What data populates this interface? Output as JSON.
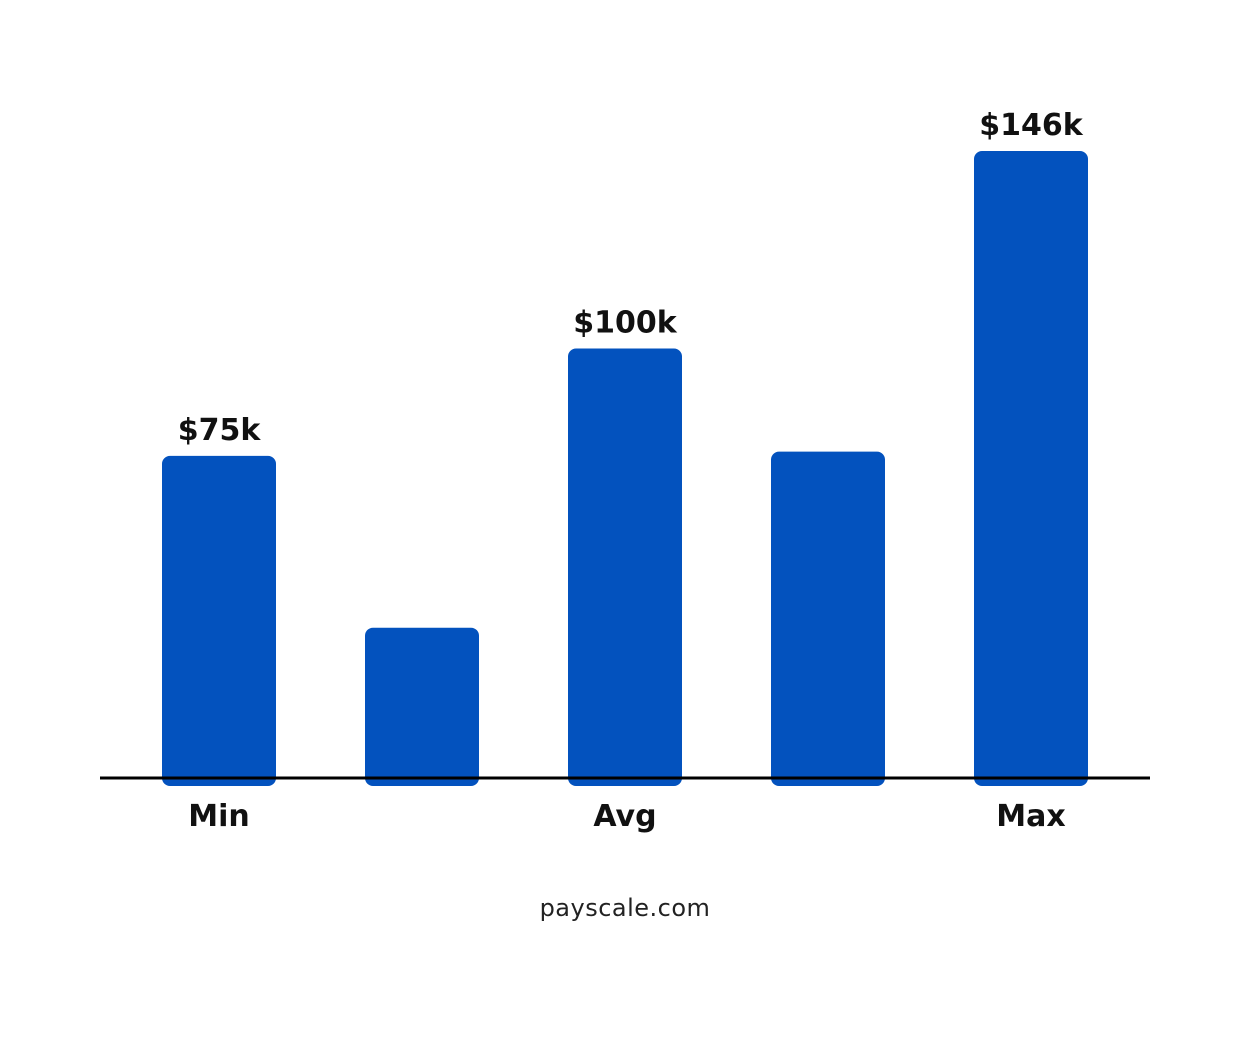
{
  "chart_data": {
    "type": "bar",
    "categories": [
      "Min",
      "",
      "Avg",
      "",
      "Max"
    ],
    "values": [
      75,
      35,
      100,
      76,
      146
    ],
    "data_labels": [
      "$75k",
      "",
      "$100k",
      "",
      "$146k"
    ],
    "ylim": [
      0,
      146
    ],
    "grid": false,
    "legend": "none",
    "bar_color": "#0352BE",
    "baseline_color": "#000000"
  },
  "source": "payscale.com"
}
